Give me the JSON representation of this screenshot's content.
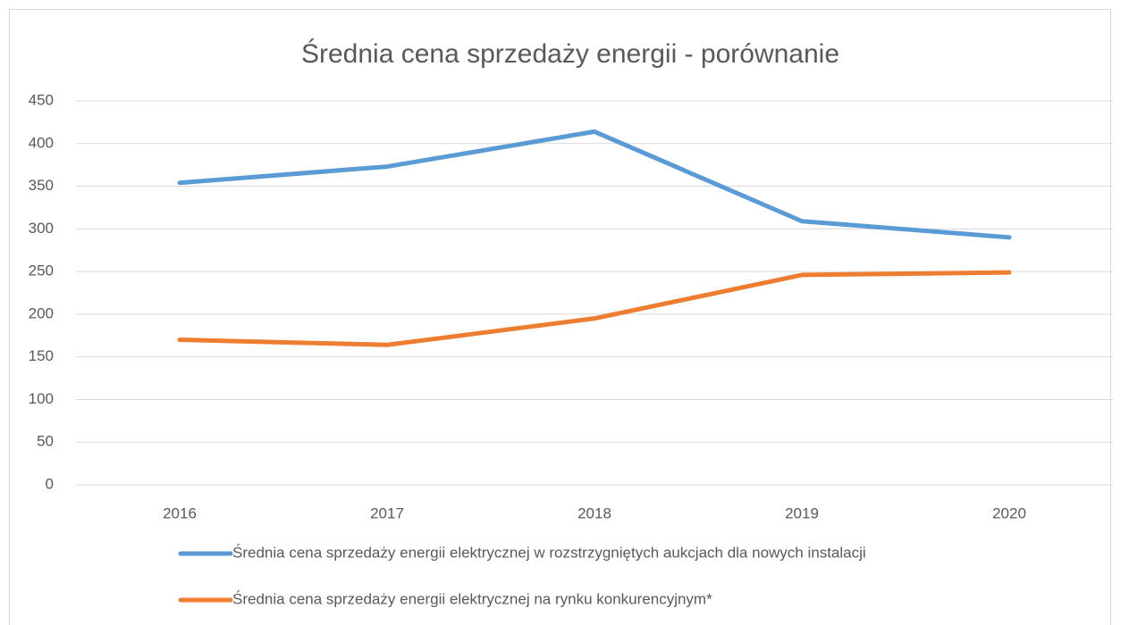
{
  "chart_data": {
    "type": "line",
    "title": "Średnia cena sprzedaży energii - porównanie",
    "categories": [
      "2016",
      "2017",
      "2018",
      "2019",
      "2020"
    ],
    "series": [
      {
        "name": "Średnia cena sprzedaży energii elektrycznej w rozstrzygniętych aukcjach dla nowych instalacji",
        "color": "#5b9bd5",
        "values": [
          354,
          373,
          414,
          309,
          290
        ]
      },
      {
        "name": "Średnia cena sprzedaży energii elektrycznej na rynku konkurencyjnym*",
        "color": "#ed7d31",
        "values": [
          170,
          164,
          195,
          246,
          249
        ]
      }
    ],
    "ylim": [
      0,
      450
    ],
    "yticks": [
      0,
      50,
      100,
      150,
      200,
      250,
      300,
      350,
      400,
      450
    ],
    "grid": true,
    "legend": "bottom"
  }
}
